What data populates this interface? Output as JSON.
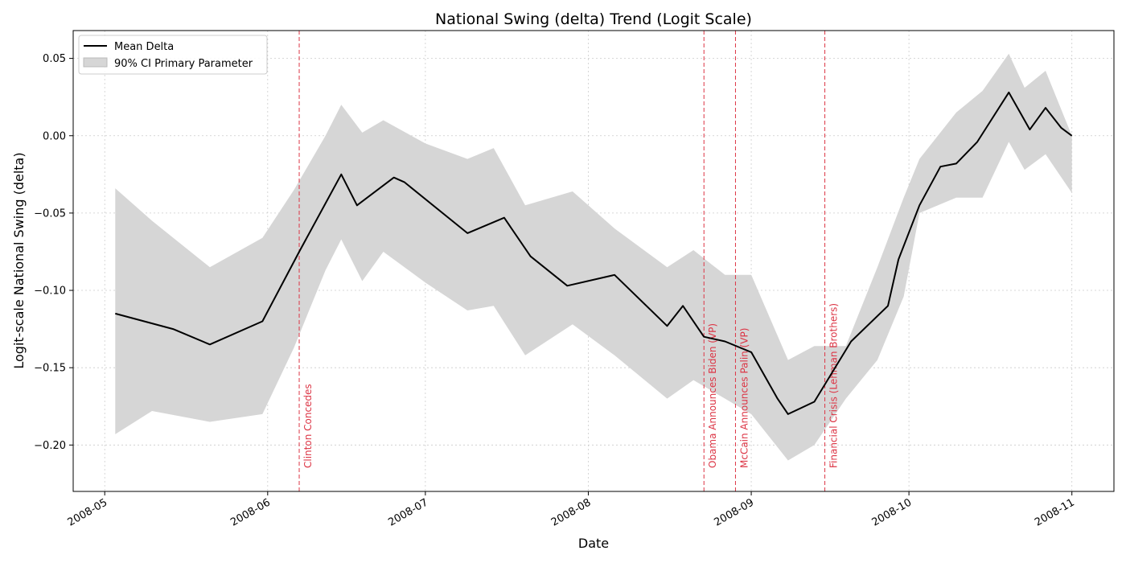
{
  "chart_data": {
    "type": "area",
    "title": "National Swing (delta) Trend (Logit Scale)",
    "xlabel": "Date",
    "ylabel": "Logit-scale National Swing (delta)",
    "xlim": [
      "2008-04-25",
      "2008-11-09"
    ],
    "ylim": [
      -0.23,
      0.068
    ],
    "x_ticks": [
      "2008-05-01",
      "2008-06-01",
      "2008-07-01",
      "2008-08-01",
      "2008-09-01",
      "2008-10-01",
      "2008-11-01"
    ],
    "x_tick_labels": [
      "2008-05",
      "2008-06",
      "2008-07",
      "2008-08",
      "2008-09",
      "2008-10",
      "2008-11"
    ],
    "y_ticks": [
      0.05,
      0.0,
      -0.05,
      -0.1,
      -0.15,
      -0.2
    ],
    "y_tick_labels": [
      "0.05",
      "0.00",
      "−0.05",
      "−0.10",
      "−0.15",
      "−0.20"
    ],
    "grid": true,
    "legend_position": "top-left",
    "colors": {
      "mean": "#000000",
      "band": "#d6d6d6",
      "event": "#dc3545",
      "grid": "#cccccc"
    },
    "series": [
      {
        "name": "Mean Delta",
        "kind": "line",
        "x": [
          "2008-05-03",
          "2008-05-14",
          "2008-05-21",
          "2008-05-31",
          "2008-06-07",
          "2008-06-15",
          "2008-06-18",
          "2008-06-25",
          "2008-06-27",
          "2008-07-09",
          "2008-07-16",
          "2008-07-21",
          "2008-07-28",
          "2008-08-06",
          "2008-08-16",
          "2008-08-19",
          "2008-08-23",
          "2008-08-27",
          "2008-09-01",
          "2008-09-06",
          "2008-09-08",
          "2008-09-13",
          "2008-09-20",
          "2008-09-27",
          "2008-09-29",
          "2008-10-03",
          "2008-10-07",
          "2008-10-10",
          "2008-10-14",
          "2008-10-20",
          "2008-10-24",
          "2008-10-27",
          "2008-10-30",
          "2008-11-01"
        ],
        "values": [
          -0.115,
          -0.125,
          -0.135,
          -0.12,
          -0.075,
          -0.025,
          -0.045,
          -0.027,
          -0.03,
          -0.063,
          -0.053,
          -0.078,
          -0.097,
          -0.09,
          -0.123,
          -0.11,
          -0.13,
          -0.133,
          -0.14,
          -0.17,
          -0.18,
          -0.172,
          -0.133,
          -0.11,
          -0.08,
          -0.045,
          -0.02,
          -0.018,
          -0.004,
          0.028,
          0.004,
          0.018,
          0.005,
          0.0
        ]
      },
      {
        "name": "90% CI Primary Parameter",
        "kind": "band",
        "x": [
          "2008-05-03",
          "2008-05-10",
          "2008-05-21",
          "2008-05-31",
          "2008-06-06",
          "2008-06-12",
          "2008-06-15",
          "2008-06-19",
          "2008-06-23",
          "2008-07-01",
          "2008-07-09",
          "2008-07-14",
          "2008-07-20",
          "2008-07-29",
          "2008-08-06",
          "2008-08-16",
          "2008-08-21",
          "2008-08-27",
          "2008-09-01",
          "2008-09-08",
          "2008-09-13",
          "2008-09-19",
          "2008-09-25",
          "2008-09-30",
          "2008-10-03",
          "2008-10-10",
          "2008-10-15",
          "2008-10-20",
          "2008-10-23",
          "2008-10-27",
          "2008-11-01"
        ],
        "lower": [
          -0.193,
          -0.178,
          -0.185,
          -0.18,
          -0.137,
          -0.087,
          -0.067,
          -0.094,
          -0.075,
          -0.095,
          -0.113,
          -0.11,
          -0.142,
          -0.122,
          -0.142,
          -0.17,
          -0.158,
          -0.17,
          -0.18,
          -0.21,
          -0.2,
          -0.17,
          -0.145,
          -0.104,
          -0.05,
          -0.04,
          -0.04,
          -0.004,
          -0.022,
          -0.012,
          -0.037
        ],
        "upper": [
          -0.034,
          -0.055,
          -0.085,
          -0.066,
          -0.035,
          0.0,
          0.02,
          0.002,
          0.01,
          -0.005,
          -0.015,
          -0.008,
          -0.045,
          -0.036,
          -0.06,
          -0.085,
          -0.074,
          -0.09,
          -0.09,
          -0.145,
          -0.136,
          -0.136,
          -0.085,
          -0.04,
          -0.015,
          0.015,
          0.029,
          0.053,
          0.031,
          0.042,
          0.0
        ]
      }
    ],
    "events": [
      {
        "date": "2008-06-07",
        "label": "Clinton Concedes"
      },
      {
        "date": "2008-08-23",
        "label": "Obama Announces Biden (VP)"
      },
      {
        "date": "2008-08-29",
        "label": "McCain Announces Palin (VP)"
      },
      {
        "date": "2008-09-15",
        "label": "Financial Crisis (Lehman Brothers)"
      }
    ]
  }
}
